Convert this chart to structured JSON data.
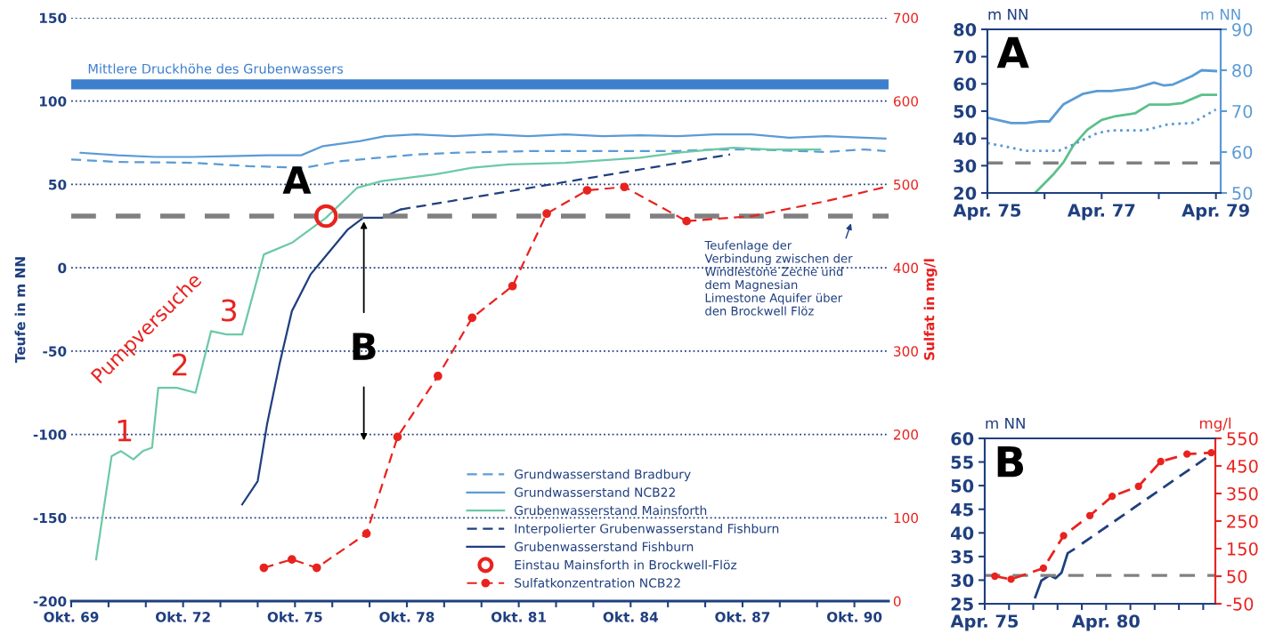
{
  "chart_data": [
    {
      "type": "line",
      "ylabel": "Teufe in m NN",
      "y2label": "Sulfat in mg/l",
      "xlim": [
        "1969-10",
        "1991-09"
      ],
      "ylim": [
        -200,
        150
      ],
      "y2lim": [
        0,
        700
      ],
      "xticks": [
        {
          "value": "1969-10",
          "label": "Okt. 69"
        },
        {
          "value": "1970-10",
          "label": null
        },
        {
          "value": "1971-10",
          "label": null
        },
        {
          "value": "1972-10",
          "label": "Okt. 72"
        },
        {
          "value": "1973-10",
          "label": null
        },
        {
          "value": "1974-10",
          "label": null
        },
        {
          "value": "1975-10",
          "label": "Okt. 75"
        },
        {
          "value": "1976-10",
          "label": null
        },
        {
          "value": "1977-10",
          "label": null
        },
        {
          "value": "1978-10",
          "label": "Okt. 78"
        },
        {
          "value": "1979-10",
          "label": null
        },
        {
          "value": "1980-10",
          "label": null
        },
        {
          "value": "1981-10",
          "label": "Okt. 81"
        },
        {
          "value": "1982-10",
          "label": null
        },
        {
          "value": "1983-10",
          "label": null
        },
        {
          "value": "1984-10",
          "label": "Okt. 84"
        },
        {
          "value": "1985-10",
          "label": null
        },
        {
          "value": "1986-10",
          "label": null
        },
        {
          "value": "1987-10",
          "label": "Okt. 87"
        },
        {
          "value": "1988-10",
          "label": null
        },
        {
          "value": "1989-10",
          "label": null
        },
        {
          "value": "1990-10",
          "label": "Okt. 90"
        }
      ],
      "yticks": [
        -200,
        -150,
        -100,
        -50,
        0,
        50,
        100,
        150
      ],
      "y2ticks": [
        0,
        100,
        200,
        300,
        400,
        500,
        600,
        700
      ],
      "grid": "y",
      "legend": "bottom right",
      "series": [
        {
          "name": "Grundwasserstand Bradbury",
          "color": "#5b9bd5",
          "line_style": "dashed",
          "x": [
            "1969-10",
            "1971-01",
            "1973-01",
            "1974-07",
            "1976-01",
            "1977-01",
            "1978-01",
            "1979-01",
            "1980-01",
            "1982-01",
            "1984-01",
            "1986-01",
            "1987-01",
            "1988-01",
            "1990-01",
            "1991-01",
            "1991-08"
          ],
          "values": [
            65,
            63.5,
            63,
            61,
            60,
            64,
            66,
            68,
            69,
            70,
            70,
            70,
            71,
            71,
            69.5,
            71,
            70
          ]
        },
        {
          "name": "Grundwasserstand NCB22",
          "color": "#5b9bd5",
          "line_style": "solid",
          "x": [
            "1970-01",
            "1971-01",
            "1972-01",
            "1973-01",
            "1974-01",
            "1975-01",
            "1975-12",
            "1976-07",
            "1977-07",
            "1978-03",
            "1979-01",
            "1980-01",
            "1981-01",
            "1982-01",
            "1983-01",
            "1984-01",
            "1985-01",
            "1986-01",
            "1987-01",
            "1988-01",
            "1989-01",
            "1990-01",
            "1991-08"
          ],
          "values": [
            69,
            67.5,
            66.5,
            66.5,
            67,
            67.5,
            67.5,
            73,
            76,
            79,
            80,
            79,
            80,
            79,
            80,
            79,
            79.5,
            79,
            80,
            80,
            78,
            79,
            77.5
          ]
        },
        {
          "name": "Grubenwasserstand Mainsforth",
          "color": "#6cc9a6",
          "line_style": "solid",
          "x": [
            "1970-06",
            "1970-11",
            "1971-02",
            "1971-06",
            "1971-09",
            "1971-12",
            "1972-02",
            "1972-08",
            "1973-02",
            "1973-07",
            "1973-12",
            "1974-05",
            "1974-12",
            "1975-09",
            "1976-08",
            "1977-06",
            "1978-02",
            "1979-07",
            "1980-07",
            "1981-07",
            "1983-01",
            "1985-01",
            "1986-01",
            "1986-07",
            "1987-07",
            "1988-07",
            "1989-11"
          ],
          "values": [
            -175,
            -113,
            -110,
            -115,
            -110,
            -108,
            -72,
            -72,
            -75,
            -38,
            -40,
            -40,
            8,
            15,
            30,
            48,
            52,
            56,
            60,
            62,
            63,
            66,
            69,
            70,
            72,
            71,
            71
          ]
        },
        {
          "name": "Interpolierter Grubenwasserstand Fishburn",
          "color": "#1f3f7f",
          "line_style": "dashed",
          "x": [
            "1978-08",
            "1987-06"
          ],
          "values": [
            35,
            68
          ]
        },
        {
          "name": "Grubenwasserstand Fishburn",
          "color": "#1f3f7f",
          "line_style": "solid",
          "x": [
            "1974-05",
            "1974-10",
            "1975-01",
            "1975-05",
            "1975-09",
            "1976-03",
            "1976-07",
            "1977-03",
            "1977-08",
            "1978-02",
            "1978-08"
          ],
          "values": [
            -142,
            -128,
            -94,
            -58,
            -26,
            -4,
            5,
            23,
            30,
            30,
            35
          ]
        },
        {
          "name": "Einstau Mainsforth in Brockwell-Flöz",
          "type": "scatter",
          "color": "#e8231f",
          "marker": "circle",
          "x": [
            "1976-08"
          ],
          "values": [
            31
          ]
        },
        {
          "name": "Sulfatkonzentration NCB22",
          "color": "#e8231f",
          "line_style": "dashed",
          "marker": "circle",
          "axis": "y2",
          "x": [
            "1974-12",
            "1975-09",
            "1976-05",
            "1977-09",
            "1978-07",
            "1979-08",
            "1980-07",
            "1981-08",
            "1982-07",
            "1983-08",
            "1984-08",
            "1986-04"
          ],
          "values": [
            40,
            50,
            40,
            81,
            197,
            270,
            340,
            378,
            465,
            493,
            497,
            456
          ]
        },
        {
          "color": "#e8231f",
          "line_style": "dashed",
          "axis": "y2",
          "x": [
            "1986-04",
            "1988-01",
            "1990-01",
            "1991-08"
          ],
          "values": [
            456,
            462,
            480,
            497
          ]
        }
      ],
      "ref_lines": [
        {
          "axis": "y",
          "value": 31,
          "color": "#808080",
          "line_style": "dashed",
          "label": "Teufenlage der\nVerbindung zwischen der\nWindlestone Zeche und\ndem Magnesian\nLimestone Aquifer über\nden Brockwell Flöz"
        }
      ],
      "bands": [
        {
          "axis": "y",
          "from": 107,
          "to": 113,
          "color": "#3d7fcc",
          "label": "Mittlere Druckhöhe des Grubenwassers"
        }
      ],
      "annotations": [
        {
          "text": "A",
          "x": "1976-08",
          "y": 31
        },
        "B",
        "Pumpversuche",
        "1",
        "2",
        "3"
      ]
    },
    {
      "type": "line",
      "title": "A",
      "ylabel": "m NN",
      "y2label": "m NN",
      "xlim": [
        "1975-04",
        "1979-05"
      ],
      "ylim": [
        20,
        80
      ],
      "y2lim": [
        50,
        90
      ],
      "xticks": [
        {
          "value": "1975-04",
          "label": "Apr. 75"
        },
        {
          "value": "1976-04",
          "label": null
        },
        {
          "value": "1977-04",
          "label": "Apr. 77"
        },
        {
          "value": "1978-04",
          "label": null
        },
        {
          "value": "1979-04",
          "label": "Apr. 79"
        }
      ],
      "yticks": [
        20,
        30,
        40,
        50,
        60,
        70,
        80
      ],
      "y2ticks": [
        50,
        60,
        70,
        80,
        90
      ],
      "series": [
        {
          "color": "#5b9bd5",
          "line_style": "solid",
          "axis": "y2",
          "x": [
            "1975-04",
            "1975-09",
            "1975-12",
            "1976-03",
            "1976-05",
            "1976-08",
            "1976-12",
            "1977-03",
            "1977-06",
            "1977-11",
            "1978-03",
            "1978-05",
            "1978-07",
            "1978-11",
            "1979-01",
            "1979-04"
          ],
          "values": [
            68.4,
            67.1,
            67.1,
            67.5,
            67.5,
            71.7,
            74.2,
            74.9,
            74.9,
            75.6,
            77,
            76.3,
            76.5,
            78.6,
            80,
            79.8
          ]
        },
        {
          "color": "#5b9bd5",
          "line_style": "dotted",
          "axis": "y2",
          "x": [
            "1975-04",
            "1975-08",
            "1975-12",
            "1976-07",
            "1976-10",
            "1977-03",
            "1977-06",
            "1978-01",
            "1978-06",
            "1978-11",
            "1979-04"
          ],
          "values": [
            62.2,
            61.3,
            60.3,
            60.3,
            61.8,
            64.6,
            65.3,
            65.3,
            66.8,
            67.1,
            70.4
          ]
        },
        {
          "color": "#5cc08a",
          "line_style": "solid",
          "x": [
            "1976-02",
            "1976-06",
            "1976-08",
            "1976-10",
            "1977-01",
            "1977-04",
            "1977-07",
            "1977-11",
            "1978-02",
            "1978-06",
            "1978-09",
            "1979-01",
            "1979-04"
          ],
          "values": [
            20,
            27.1,
            31.3,
            37.3,
            43.2,
            46.8,
            48.2,
            49.2,
            52.4,
            52.4,
            53,
            56,
            56
          ]
        }
      ],
      "ref_lines": [
        {
          "axis": "y",
          "value": 31,
          "color": "#808080",
          "line_style": "dashed"
        }
      ]
    },
    {
      "type": "line",
      "title": "B",
      "ylabel": "m NN",
      "y2label": "mg/l",
      "xlim": [
        "1975-04",
        "1984-10"
      ],
      "ylim": [
        25,
        60
      ],
      "y2lim": [
        -50,
        550
      ],
      "xticks": [
        {
          "value": "1975-04",
          "label": "Apr. 75"
        },
        {
          "value": "1976-04",
          "label": null
        },
        {
          "value": "1977-04",
          "label": null
        },
        {
          "value": "1978-04",
          "label": null
        },
        {
          "value": "1979-04",
          "label": null
        },
        {
          "value": "1980-04",
          "label": "Apr. 80"
        },
        {
          "value": "1981-04",
          "label": null
        },
        {
          "value": "1982-04",
          "label": null
        },
        {
          "value": "1983-04",
          "label": null
        },
        {
          "value": "1984-04",
          "label": null
        }
      ],
      "yticks": [
        25,
        30,
        35,
        40,
        45,
        50,
        55,
        60
      ],
      "y2ticks": [
        -50,
        50,
        150,
        250,
        350,
        450,
        550
      ],
      "series": [
        {
          "color": "#e8231f",
          "line_style": "dashed",
          "marker": "circle",
          "axis": "y2",
          "x": [
            "1975-09",
            "1976-05",
            "1977-09",
            "1978-07",
            "1979-08",
            "1980-07",
            "1981-08",
            "1982-07",
            "1983-08",
            "1984-08"
          ],
          "values": [
            50,
            39,
            79,
            197,
            270,
            340,
            376,
            466,
            493,
            498
          ]
        },
        {
          "color": "#1f3f7f",
          "line_style": "solid",
          "x": [
            "1977-05",
            "1977-08",
            "1977-12",
            "1978-03",
            "1978-06",
            "1978-09",
            "1978-12"
          ],
          "values": [
            26.4,
            29.9,
            31,
            30.4,
            31.6,
            35.7,
            36.5
          ]
        },
        {
          "color": "#1f3f7f",
          "line_style": "dashed",
          "x": [
            "1979-04",
            "1984-08"
          ],
          "values": [
            37.7,
            56.6
          ]
        }
      ],
      "ref_lines": [
        {
          "axis": "y",
          "value": 31,
          "color": "#808080",
          "line_style": "dashed"
        }
      ]
    }
  ]
}
